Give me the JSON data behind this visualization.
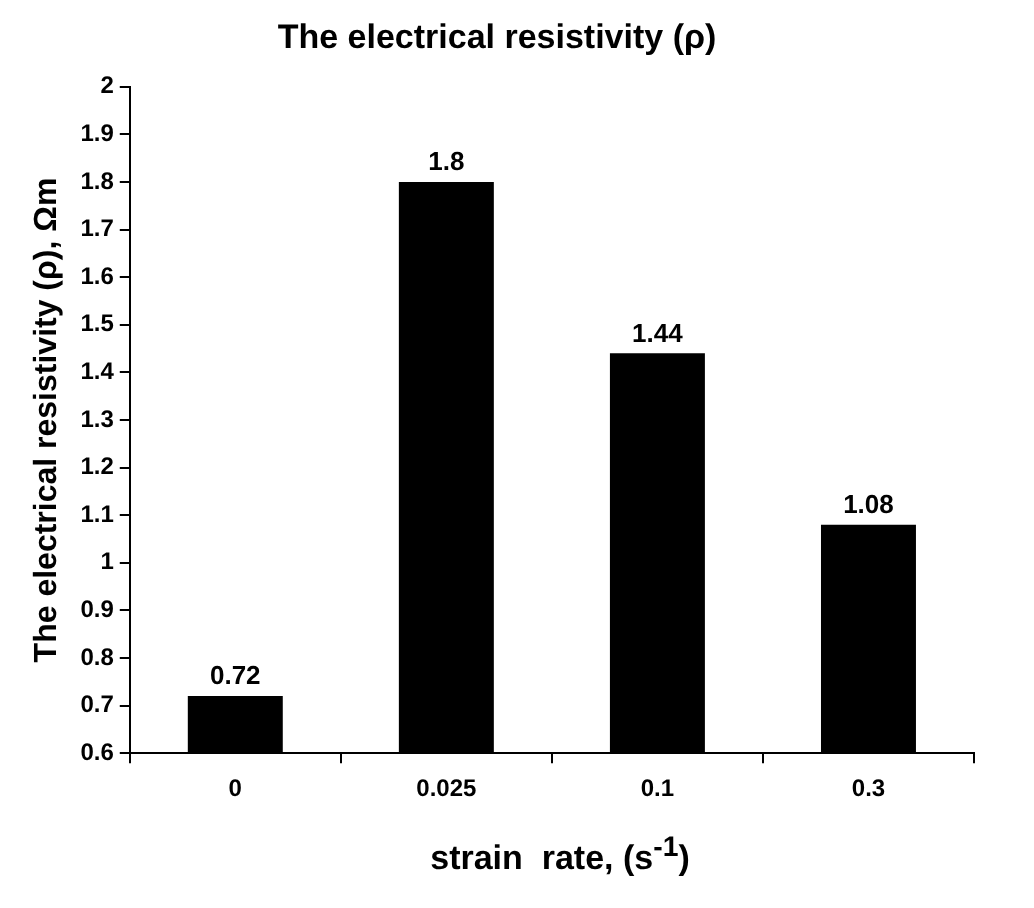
{
  "chart_data": {
    "type": "bar",
    "title": "The electrical resistivity (ρ)",
    "xlabel": "strain  rate, (s$^{-1}$)",
    "ylabel": "The electrical resistivity (ρ), Ωm",
    "categories": [
      "0",
      "0.025",
      "0.1",
      "0.3"
    ],
    "values": [
      0.72,
      1.8,
      1.44,
      1.08
    ],
    "color": "#000000",
    "ylim": [
      0.6,
      2
    ],
    "yticks": [
      0.6,
      0.7,
      0.8,
      0.9,
      1,
      1.1,
      1.2,
      1.3,
      1.4,
      1.5,
      1.6,
      1.7,
      1.8,
      1.9,
      2
    ],
    "grid": false,
    "legend": false,
    "data_labels": true
  }
}
